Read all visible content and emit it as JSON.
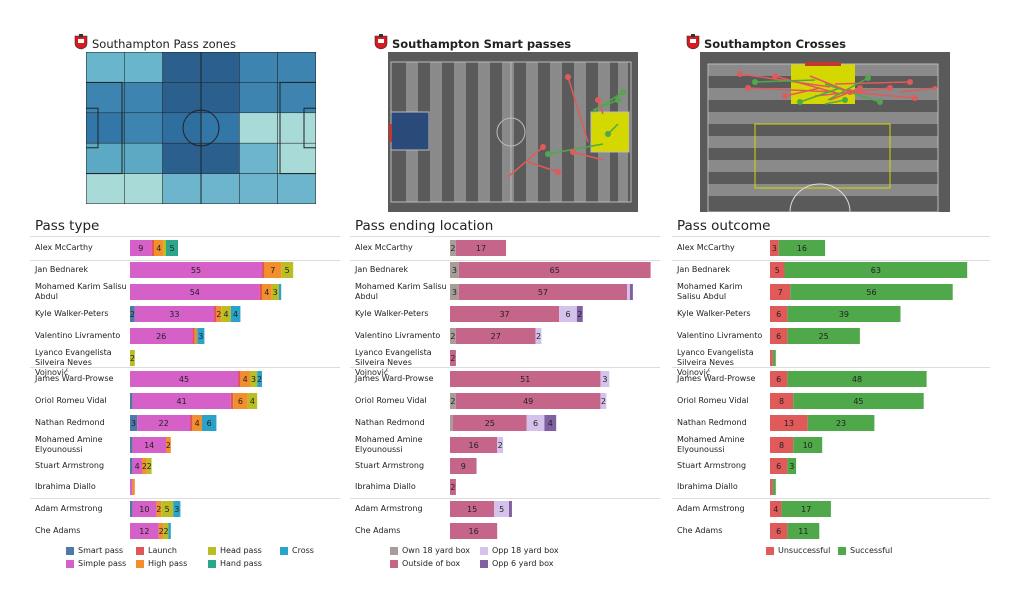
{
  "charts": {
    "pass_zones_title": "Southampton Pass zones",
    "smart_passes_title": "Southampton Smart passes",
    "crosses_title": "Southampton Crosses"
  },
  "colors": {
    "smart": "#4e79a7",
    "simple": "#d460c8",
    "launch": "#e15759",
    "high": "#f28e2b",
    "head": "#bcbd22",
    "hand": "#2ca58d",
    "cross": "#29a3c9",
    "own18": "#a89c98",
    "outside": "#c5658a",
    "opp18": "#d4c2ec",
    "opp6": "#8060a0",
    "unsuccessful": "#e05a5a",
    "successful": "#4fa84a"
  },
  "chart_data": [
    {
      "type": "bar",
      "title": "Pass type",
      "stacked": true,
      "orientation": "horizontal",
      "categories": [
        "Alex McCarthy",
        "Jan Bednarek",
        "Mohamed Karim Salisu Abdul",
        "Kyle Walker-Peters",
        "Valentino Livramento",
        "Lyanco Evangelista Silveira Neves Vojnović",
        "James  Ward-Prowse",
        "Oriol Romeu Vidal",
        "Nathan Redmond",
        "Mohamed Amine Elyounoussi",
        "Stuart Armstrong",
        "Ibrahima Diallo",
        "Adam Armstrong",
        "Che Adams"
      ],
      "series": [
        {
          "name": "Smart pass",
          "color_key": "smart",
          "values": [
            0,
            0,
            0,
            2,
            0,
            0,
            0,
            1,
            3,
            1,
            1,
            0,
            1,
            0
          ]
        },
        {
          "name": "Simple pass",
          "color_key": "simple",
          "values": [
            9,
            55,
            54,
            33,
            26,
            0,
            45,
            41,
            22,
            14,
            4,
            1,
            10,
            12
          ]
        },
        {
          "name": "Launch",
          "color_key": "launch",
          "values": [
            1,
            1,
            1,
            1,
            1,
            0,
            1,
            1,
            1,
            0,
            0,
            0,
            0,
            0
          ]
        },
        {
          "name": "High pass",
          "color_key": "high",
          "values": [
            4,
            7,
            4,
            2,
            1,
            0,
            4,
            6,
            4,
            2,
            2,
            1,
            2,
            2
          ]
        },
        {
          "name": "Head pass",
          "color_key": "head",
          "values": [
            1,
            5,
            3,
            4,
            0,
            2,
            3,
            4,
            0,
            0,
            2,
            0,
            5,
            2
          ]
        },
        {
          "name": "Hand pass",
          "color_key": "hand",
          "values": [
            5,
            0,
            0,
            0,
            0,
            0,
            0,
            0,
            0,
            0,
            0,
            0,
            0,
            0
          ]
        },
        {
          "name": "Cross",
          "color_key": "cross",
          "values": [
            0,
            0,
            1,
            4,
            3,
            0,
            2,
            0,
            6,
            0,
            0,
            0,
            3,
            1
          ]
        }
      ],
      "legend": "bottom"
    },
    {
      "type": "bar",
      "title": "Pass ending location",
      "stacked": true,
      "orientation": "horizontal",
      "categories": [
        "Alex McCarthy",
        "Jan Bednarek",
        "Mohamed Karim Salisu Abdul",
        "Kyle Walker-Peters",
        "Valentino Livramento",
        "Lyanco Evangelista Silveira Neves Vojnović",
        "James  Ward-Prowse",
        "Oriol Romeu Vidal",
        "Nathan Redmond",
        "Mohamed Amine Elyounoussi",
        "Stuart Armstrong",
        "Ibrahima Diallo",
        "Adam Armstrong",
        "Che Adams"
      ],
      "series": [
        {
          "name": "Own 18 yard box",
          "color_key": "own18",
          "values": [
            2,
            3,
            3,
            0,
            2,
            0,
            0,
            2,
            1,
            0,
            0,
            0,
            0,
            0
          ]
        },
        {
          "name": "Outside of box",
          "color_key": "outside",
          "values": [
            17,
            65,
            57,
            37,
            27,
            2,
            51,
            49,
            25,
            16,
            9,
            2,
            15,
            16
          ]
        },
        {
          "name": "Opp 18 yard box",
          "color_key": "opp18",
          "values": [
            0,
            0,
            1,
            6,
            2,
            0,
            3,
            2,
            6,
            2,
            0,
            0,
            5,
            0
          ]
        },
        {
          "name": "Opp 6 yard box",
          "color_key": "opp6",
          "values": [
            0,
            0,
            1,
            2,
            0,
            0,
            0,
            0,
            4,
            0,
            0,
            0,
            1,
            0
          ]
        }
      ],
      "legend": "bottom"
    },
    {
      "type": "bar",
      "title": "Pass outcome",
      "stacked": true,
      "orientation": "horizontal",
      "categories": [
        "Alex McCarthy",
        "Jan Bednarek",
        "Mohamed Karim Salisu Abdul",
        "Kyle Walker-Peters",
        "Valentino Livramento",
        "Lyanco Evangelista Silveira Neves Vojnović",
        "James  Ward-Prowse",
        "Oriol Romeu Vidal",
        "Nathan Redmond",
        "Mohamed Amine Elyounoussi",
        "Stuart Armstrong",
        "Ibrahima Diallo",
        "Adam Armstrong",
        "Che Adams"
      ],
      "series": [
        {
          "name": "Unsuccessful",
          "color_key": "unsuccessful",
          "values": [
            3,
            5,
            7,
            6,
            6,
            1,
            6,
            8,
            13,
            8,
            6,
            1,
            4,
            6
          ]
        },
        {
          "name": "Successful",
          "color_key": "successful",
          "values": [
            16,
            63,
            56,
            39,
            25,
            1,
            48,
            45,
            23,
            10,
            3,
            1,
            17,
            11
          ]
        }
      ],
      "legend": "bottom"
    }
  ],
  "pass_zones": {
    "type": "heatmap",
    "rows": 5,
    "cols": 6,
    "shades": [
      [
        "#69b5cc",
        "#69b5cc",
        "#2a5f8e",
        "#2a5f8e",
        "#3e84b1",
        "#3e84b1"
      ],
      [
        "#3e84b1",
        "#3e84b1",
        "#2a5f8e",
        "#2a5f8e",
        "#3e84b1",
        "#3e84b1"
      ],
      [
        "#3277a7",
        "#3e84b1",
        "#2f6fa0",
        "#3277a7",
        "#a8dbd8",
        "#a8dbd8"
      ],
      [
        "#5ca9c4",
        "#5ca9c4",
        "#2a5f8e",
        "#2a5f8e",
        "#6cb5cc",
        "#a8dbd8"
      ],
      [
        "#a8dbd8",
        "#a8dbd8",
        "#6cb5cc",
        "#6cb5cc",
        "#6cb5cc",
        "#6cb5cc"
      ]
    ]
  }
}
